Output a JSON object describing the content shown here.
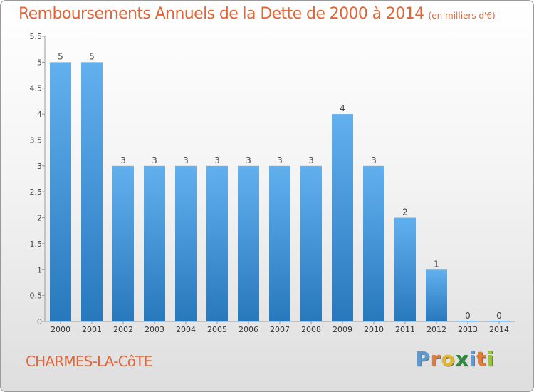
{
  "title": "Remboursements Annuels de la Dette de 2000 à 2014",
  "unit": "(en milliers d'€)",
  "commune": "CHARMES-LA-CôTE",
  "logo": [
    "P",
    "r",
    "o",
    "x",
    "i",
    "t",
    "i"
  ],
  "colors": {
    "title": "#e0663a",
    "bar_top": "#62b0ee",
    "bar_bottom": "#2878bd",
    "logo": [
      "#5b9bd5",
      "#e07b39",
      "#e0b830",
      "#2e8b3e",
      "#5aa0e0",
      "#e07b39",
      "#9ac43c"
    ]
  },
  "chart_data": {
    "type": "bar",
    "categories": [
      "2000",
      "2001",
      "2002",
      "2003",
      "2004",
      "2005",
      "2006",
      "2007",
      "2008",
      "2009",
      "2010",
      "2011",
      "2012",
      "2013",
      "2014"
    ],
    "values": [
      5,
      5,
      3,
      3,
      3,
      3,
      3,
      3,
      3,
      4,
      3,
      2,
      1,
      0,
      0
    ],
    "data_labels": [
      "5",
      "5",
      "3",
      "3",
      "3",
      "3",
      "3",
      "3",
      "3",
      "4",
      "3",
      "2",
      "1",
      "0",
      "0"
    ],
    "y_ticks": [
      "0",
      "0.5",
      "1",
      "1.5",
      "2",
      "2.5",
      "3",
      "3.5",
      "4",
      "4.5",
      "5",
      "5.5"
    ],
    "ylim": [
      0,
      5.5
    ],
    "grid": false
  }
}
